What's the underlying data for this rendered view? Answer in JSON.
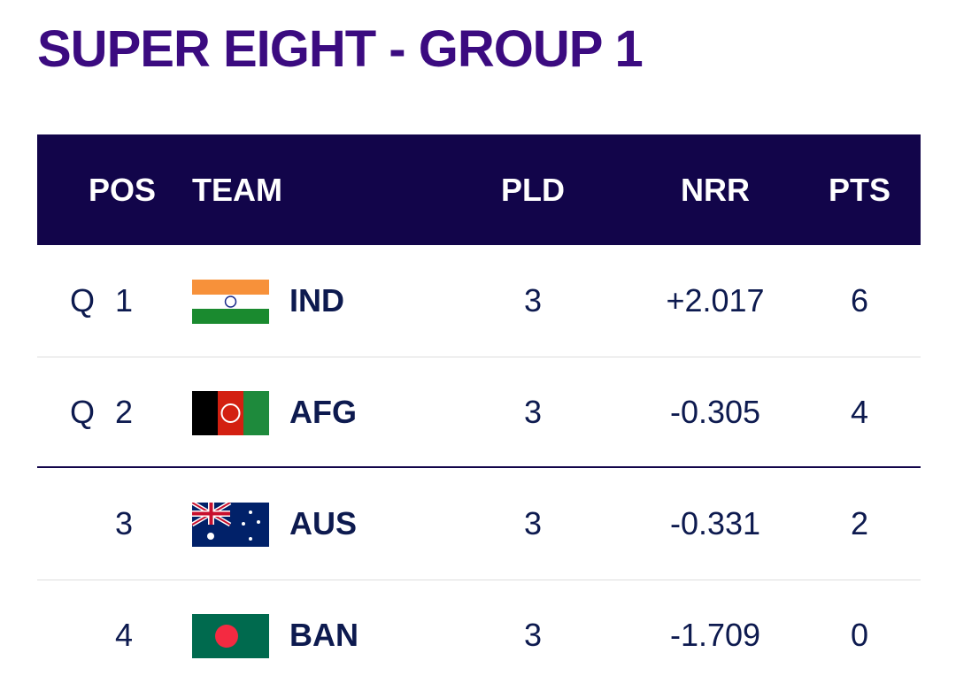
{
  "header": {
    "title": "SUPER EIGHT - GROUP 1"
  },
  "table": {
    "columns": [
      "POS",
      "TEAM",
      "PLD",
      "NRR",
      "PTS"
    ],
    "rows": [
      {
        "qualifier": "Q",
        "pos": 1,
        "team": "IND",
        "pld": 3,
        "nrr": "+2.017",
        "pts": 6
      },
      {
        "qualifier": "Q",
        "pos": 2,
        "team": "AFG",
        "pld": 3,
        "nrr": "-0.305",
        "pts": 4
      },
      {
        "pos": 3,
        "team": "AUS",
        "pld": 3,
        "nrr": "-0.331",
        "pts": 2
      },
      {
        "pos": 4,
        "team": "BAN",
        "pld": 3,
        "nrr": "-1.709",
        "pts": 0
      }
    ]
  }
}
